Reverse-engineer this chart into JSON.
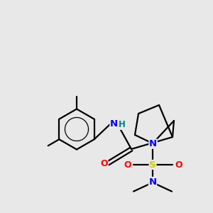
{
  "bg_color": "#e8e8e8",
  "bond_color": "#000000",
  "N_color": "#0000ff",
  "O_color": "#ff0000",
  "S_color": "#cccc00",
  "NH_color": "#008080",
  "figsize": [
    3.0,
    3.0
  ],
  "dpi": 100,
  "xlim": [
    0,
    10
  ],
  "ylim": [
    0,
    10
  ]
}
